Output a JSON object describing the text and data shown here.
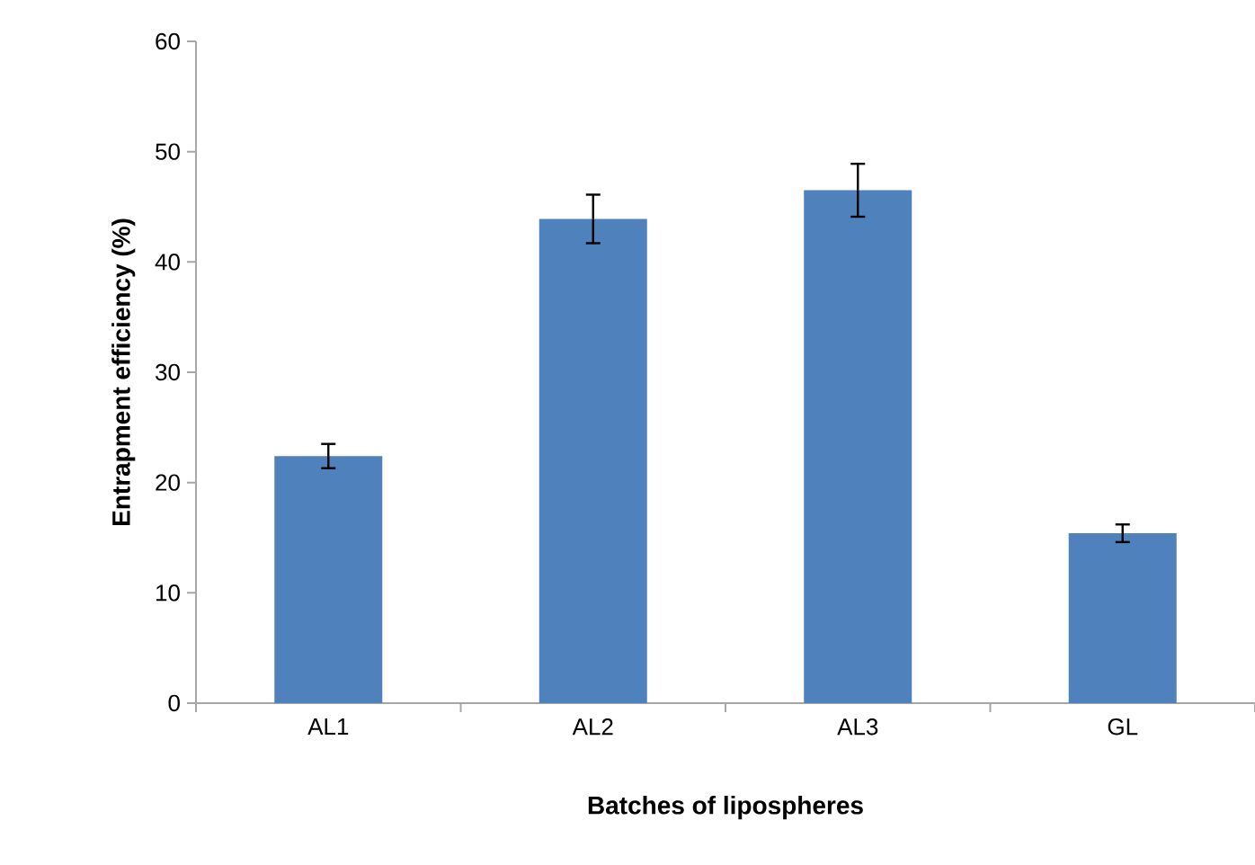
{
  "chart_data": {
    "type": "bar",
    "xlabel": "Batches of lipospheres",
    "ylabel": "Entrapment efficiency (%)",
    "categories": [
      "AL1",
      "AL2",
      "AL3",
      "GL"
    ],
    "values": [
      22.4,
      43.9,
      46.5,
      15.4
    ],
    "errors": [
      1.1,
      2.2,
      2.4,
      0.8
    ],
    "color": "#4f81bd",
    "ylim": [
      0,
      60
    ],
    "yticks": [
      0,
      10,
      20,
      30,
      40,
      50,
      60
    ]
  }
}
